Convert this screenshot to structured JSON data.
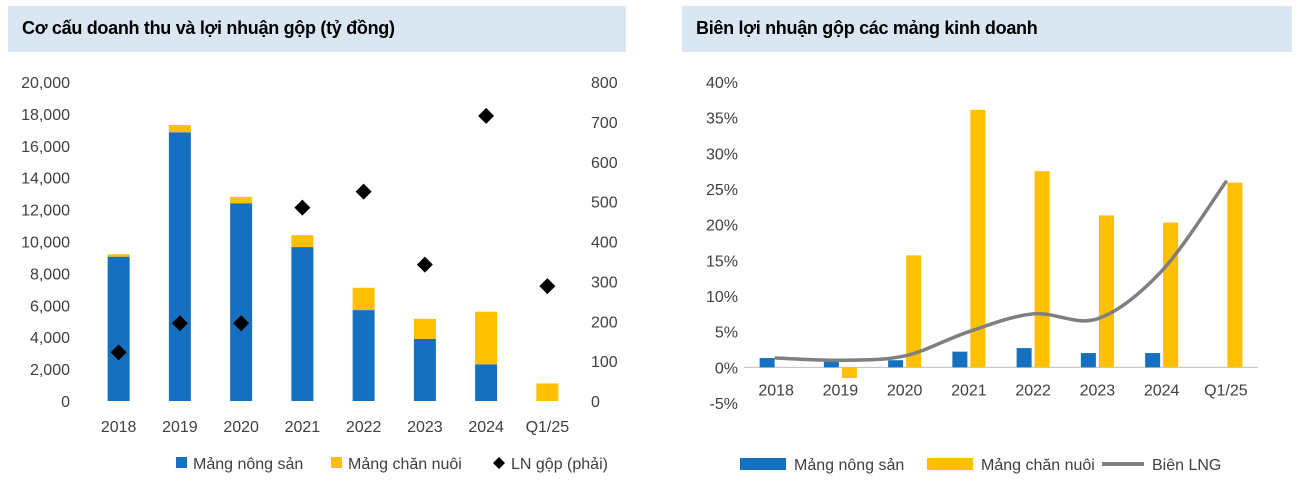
{
  "chart_data": [
    {
      "type": "bar",
      "title": "Cơ cấu doanh thu và lợi nhuận gộp (tỷ đồng)",
      "categories": [
        "2018",
        "2019",
        "2020",
        "2021",
        "2022",
        "2023",
        "2024",
        "Q1/25"
      ],
      "y_ticks": [
        "0",
        "2,000",
        "4,000",
        "6,000",
        "8,000",
        "10,000",
        "12,000",
        "14,000",
        "16,000",
        "18,000",
        "20,000"
      ],
      "y2_ticks": [
        "0",
        "100",
        "200",
        "300",
        "400",
        "500",
        "600",
        "700",
        "800"
      ],
      "ylim": [
        0,
        20000
      ],
      "y2lim": [
        0,
        800
      ],
      "stacked": true,
      "legend_position": "bottom",
      "series": [
        {
          "name": "Mảng nông sản",
          "kind": "bar",
          "color": "#1570c0",
          "values": [
            9050,
            16850,
            12400,
            9650,
            5700,
            3900,
            2300,
            null
          ]
        },
        {
          "name": "Mảng chăn nuôi",
          "kind": "bar",
          "color": "#ffc000",
          "values": [
            150,
            450,
            400,
            750,
            1400,
            1250,
            3300,
            1100
          ]
        },
        {
          "name": "LN gộp (phải)",
          "kind": "scatter",
          "axis": "right",
          "color": "#000000",
          "values": [
            122,
            195,
            195,
            485,
            525,
            342,
            715,
            288
          ]
        }
      ]
    },
    {
      "type": "bar",
      "title": "Biên lợi nhuận gộp các mảng kinh doanh",
      "categories": [
        "2018",
        "2019",
        "2020",
        "2021",
        "2022",
        "2023",
        "2024",
        "Q1/25"
      ],
      "y_ticks": [
        "-5%",
        "0%",
        "5%",
        "10%",
        "15%",
        "20%",
        "25%",
        "30%",
        "35%",
        "40%"
      ],
      "ylim": [
        -5,
        40
      ],
      "legend_position": "bottom",
      "series": [
        {
          "name": "Mảng nông sản",
          "kind": "bar",
          "color": "#1570c0",
          "values": [
            1.3,
            1.0,
            1.0,
            2.2,
            2.7,
            2.0,
            2.0,
            null
          ]
        },
        {
          "name": "Mảng chăn nuôi",
          "kind": "bar",
          "color": "#ffc000",
          "values": [
            null,
            -1.5,
            15.7,
            36.1,
            27.5,
            21.3,
            20.3,
            25.9
          ]
        },
        {
          "name": "Biên LNG",
          "kind": "line",
          "color": "#7f7f7f",
          "values": [
            1.3,
            1.0,
            1.6,
            5.0,
            7.5,
            6.8,
            13.5,
            26.0
          ]
        }
      ]
    }
  ]
}
